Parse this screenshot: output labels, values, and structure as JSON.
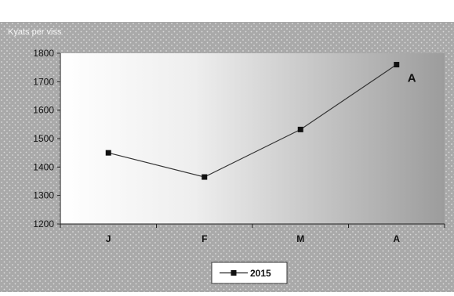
{
  "chart_data": {
    "type": "line",
    "title": "",
    "ylabel": "Kyats per viss",
    "xlabel": "",
    "categories": [
      "J",
      "F",
      "M",
      "A"
    ],
    "ylim": [
      1200,
      1800
    ],
    "yticks": [
      1200,
      1300,
      1400,
      1500,
      1600,
      1700,
      1800
    ],
    "grid": false,
    "legend_position": "bottom-center",
    "series": [
      {
        "name": "2015",
        "values": [
          1450,
          1365,
          1532,
          1760
        ]
      }
    ],
    "annotations": [
      {
        "text": "A",
        "category": "A",
        "value": 1760
      }
    ]
  }
}
